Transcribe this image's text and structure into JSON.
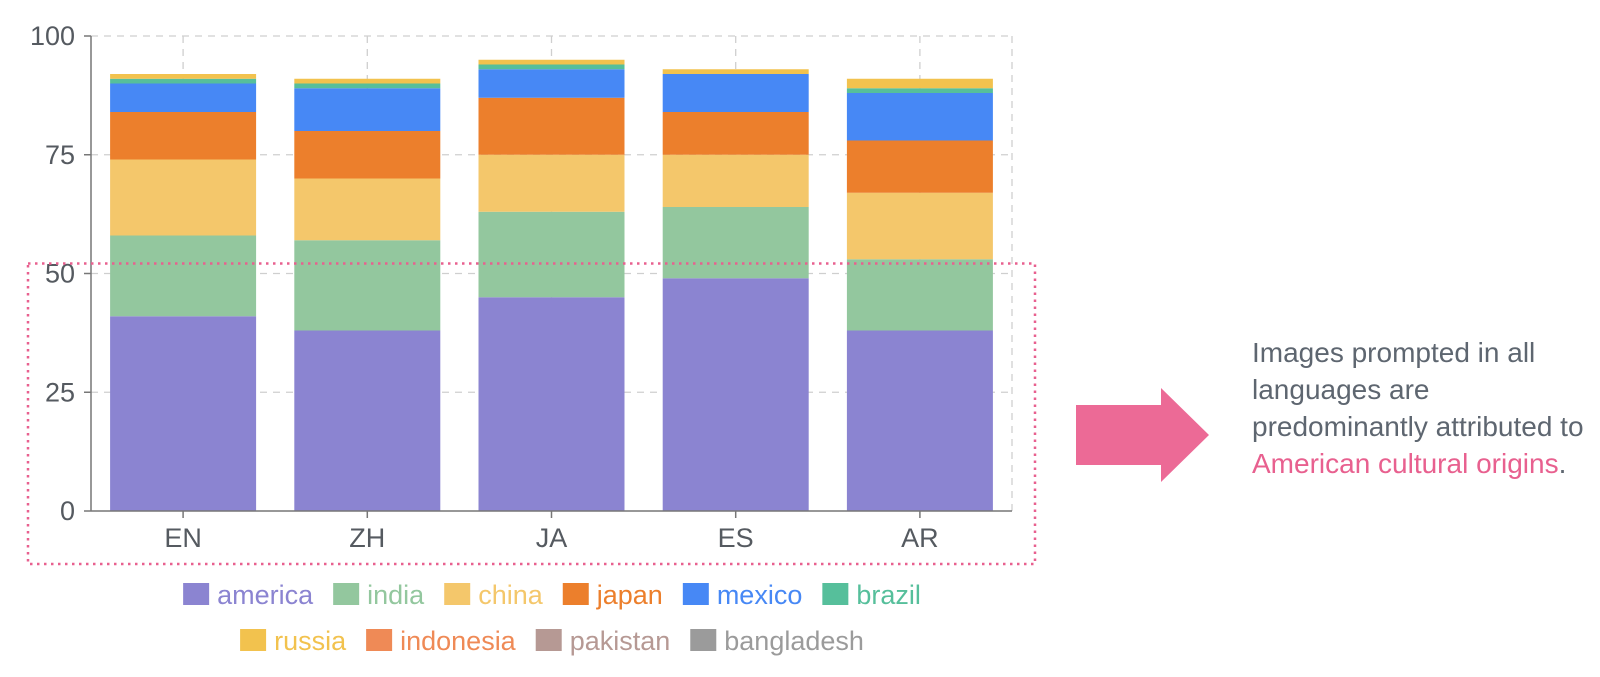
{
  "chart_data": {
    "type": "bar",
    "stacked": true,
    "categories": [
      "EN",
      "ZH",
      "JA",
      "ES",
      "AR"
    ],
    "ylim": [
      0,
      100
    ],
    "yticks": [
      0,
      25,
      50,
      75,
      100
    ],
    "grid": true,
    "highlight_range": [
      0,
      50
    ],
    "series": [
      {
        "name": "america",
        "color": "#8b84d1",
        "values": [
          41,
          38,
          45,
          49,
          38
        ]
      },
      {
        "name": "india",
        "color": "#93c79e",
        "values": [
          17,
          19,
          18,
          15,
          15
        ]
      },
      {
        "name": "china",
        "color": "#f4c76b",
        "values": [
          16,
          13,
          12,
          11,
          14
        ]
      },
      {
        "name": "japan",
        "color": "#ec7f2c",
        "values": [
          10,
          10,
          12,
          9,
          11
        ]
      },
      {
        "name": "mexico",
        "color": "#4788f5",
        "values": [
          6,
          9,
          6,
          8,
          10
        ]
      },
      {
        "name": "brazil",
        "color": "#56bf9b",
        "values": [
          1,
          1,
          1,
          0,
          1
        ]
      },
      {
        "name": "russia",
        "color": "#f2c24e",
        "values": [
          1,
          1,
          1,
          1,
          2
        ]
      },
      {
        "name": "indonesia",
        "color": "#ef8a56",
        "values": [
          0,
          0,
          0,
          0,
          0
        ]
      },
      {
        "name": "pakistan",
        "color": "#b69994",
        "values": [
          0,
          0,
          0,
          0,
          0
        ]
      },
      {
        "name": "bangladesh",
        "color": "#9b9b9b",
        "values": [
          0,
          0,
          0,
          0,
          0
        ]
      }
    ],
    "legend_rows": [
      [
        "america",
        "india",
        "china",
        "japan",
        "mexico",
        "brazil"
      ],
      [
        "russia",
        "indonesia",
        "pakistan",
        "bangladesh"
      ]
    ]
  },
  "annotation": {
    "text_before": "Images prompted in all languages are predominantly attributed to",
    "highlight": "American cultural origins",
    "text_after": ".",
    "highlight_color": "#e8608f",
    "arrow_color": "#ec6a96"
  }
}
